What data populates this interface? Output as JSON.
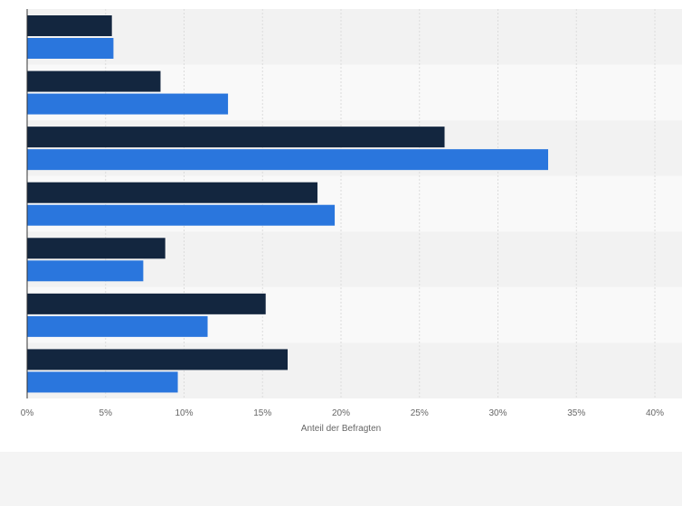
{
  "chart_data": {
    "type": "bar",
    "orientation": "horizontal",
    "xlabel": "Anteil der Befragten",
    "xlim": [
      0,
      40
    ],
    "x_ticks": [
      0,
      5,
      10,
      15,
      20,
      25,
      30,
      35,
      40
    ],
    "x_tick_labels": [
      "0%",
      "5%",
      "10%",
      "15%",
      "20%",
      "25%",
      "30%",
      "35%",
      "40%"
    ],
    "grid": true,
    "series": [
      {
        "color": "#13263f",
        "values": [
          5.4,
          8.5,
          26.6,
          18.5,
          8.8,
          15.2,
          16.6
        ]
      },
      {
        "color": "#2a76dd",
        "values": [
          5.5,
          12.8,
          33.2,
          19.6,
          7.4,
          11.5,
          9.6
        ]
      }
    ],
    "band_colors": [
      "#f2f2f2",
      "#f9f9f9"
    ]
  }
}
